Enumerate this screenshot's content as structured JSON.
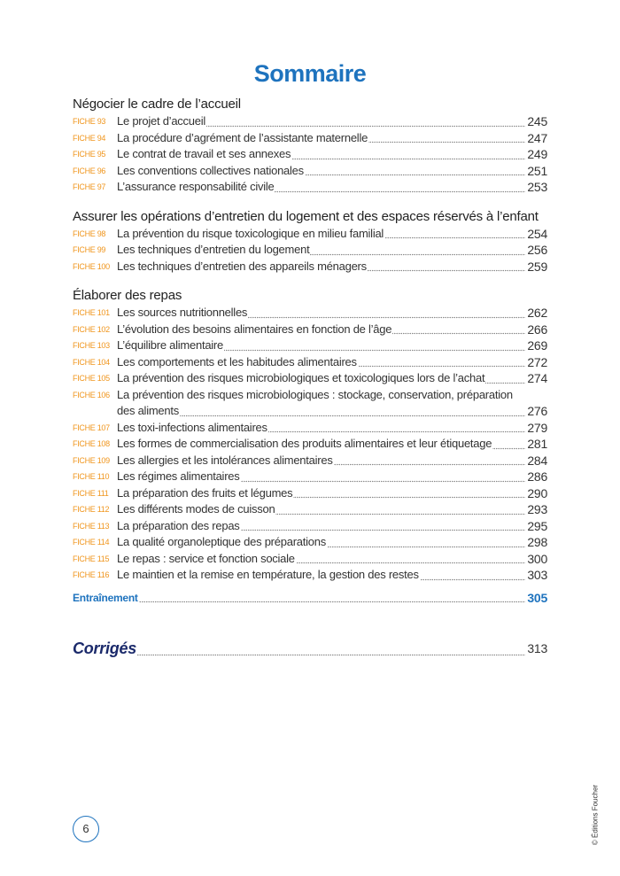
{
  "title": "Sommaire",
  "sections": [
    {
      "heading": "Négocier le cadre de l’accueil",
      "entries": [
        {
          "label": "FICHE 93",
          "text": "Le projet d’accueil",
          "page": 245
        },
        {
          "label": "FICHE 94",
          "text": "La procédure d’agrément de l’assistante maternelle",
          "page": 247
        },
        {
          "label": "FICHE 95",
          "text": "Le contrat de travail et ses annexes",
          "page": 249
        },
        {
          "label": "FICHE 96",
          "text": "Les conventions collectives nationales",
          "page": 251
        },
        {
          "label": "FICHE 97",
          "text": "L’assurance responsabilité civile",
          "page": 253
        }
      ]
    },
    {
      "heading": "Assurer les opérations d’entretien du logement et des espaces réservés à l’enfant",
      "entries": [
        {
          "label": "FICHE 98",
          "text": "La prévention du risque toxicologique en milieu familial",
          "page": 254
        },
        {
          "label": "FICHE 99",
          "text": "Les techniques d’entretien du logement",
          "page": 256
        },
        {
          "label": "FICHE 100",
          "text": "Les techniques d’entretien des appareils ménagers",
          "page": 259
        }
      ]
    },
    {
      "heading": "Élaborer des repas",
      "entries": [
        {
          "label": "FICHE 101",
          "text": "Les sources nutritionnelles",
          "page": 262
        },
        {
          "label": "FICHE 102",
          "text": "L’évolution des besoins alimentaires en fonction  de l’âge",
          "page": 266
        },
        {
          "label": "FICHE 103",
          "text": "L’équilibre alimentaire",
          "page": 269
        },
        {
          "label": "FICHE 104",
          "text": "Les comportements et les habitudes alimentaires",
          "page": 272
        },
        {
          "label": "FICHE 105",
          "text": "La prévention des risques microbiologiques et toxicologiques lors de l’achat",
          "page": 274
        },
        {
          "label": "FICHE 106",
          "text": "La prévention des risques microbiologiques : stockage, conservation, préparation des aliments",
          "page": 276
        },
        {
          "label": "FICHE 107",
          "text": "Les toxi-infections alimentaires",
          "page": 279
        },
        {
          "label": "FICHE 108",
          "text": "Les formes de commercialisation des produits alimentaires et leur étiquetage",
          "page": 281
        },
        {
          "label": "FICHE 109",
          "text": "Les allergies et les intolérances alimentaires",
          "page": 284
        },
        {
          "label": "FICHE 110",
          "text": "Les régimes alimentaires",
          "page": 286
        },
        {
          "label": "FICHE 111",
          "text": "La préparation des fruits et légumes",
          "page": 290
        },
        {
          "label": "FICHE 112",
          "text": "Les différents modes de cuisson",
          "page": 293
        },
        {
          "label": "FICHE 113",
          "text": "La préparation des repas",
          "page": 295
        },
        {
          "label": "FICHE 114",
          "text": "La qualité organoleptique des préparations",
          "page": 298
        },
        {
          "label": "FICHE 115",
          "text": "Le repas : service et fonction sociale",
          "page": 300
        },
        {
          "label": "FICHE 116",
          "text": "Le maintien et la remise en température, la gestion des restes",
          "page": 303
        }
      ]
    }
  ],
  "training": {
    "text": "Entraînement",
    "page": 305
  },
  "corriges": {
    "text": "Corrigés",
    "page": 313
  },
  "page_number": 6,
  "copyright": "© Éditions Foucher"
}
